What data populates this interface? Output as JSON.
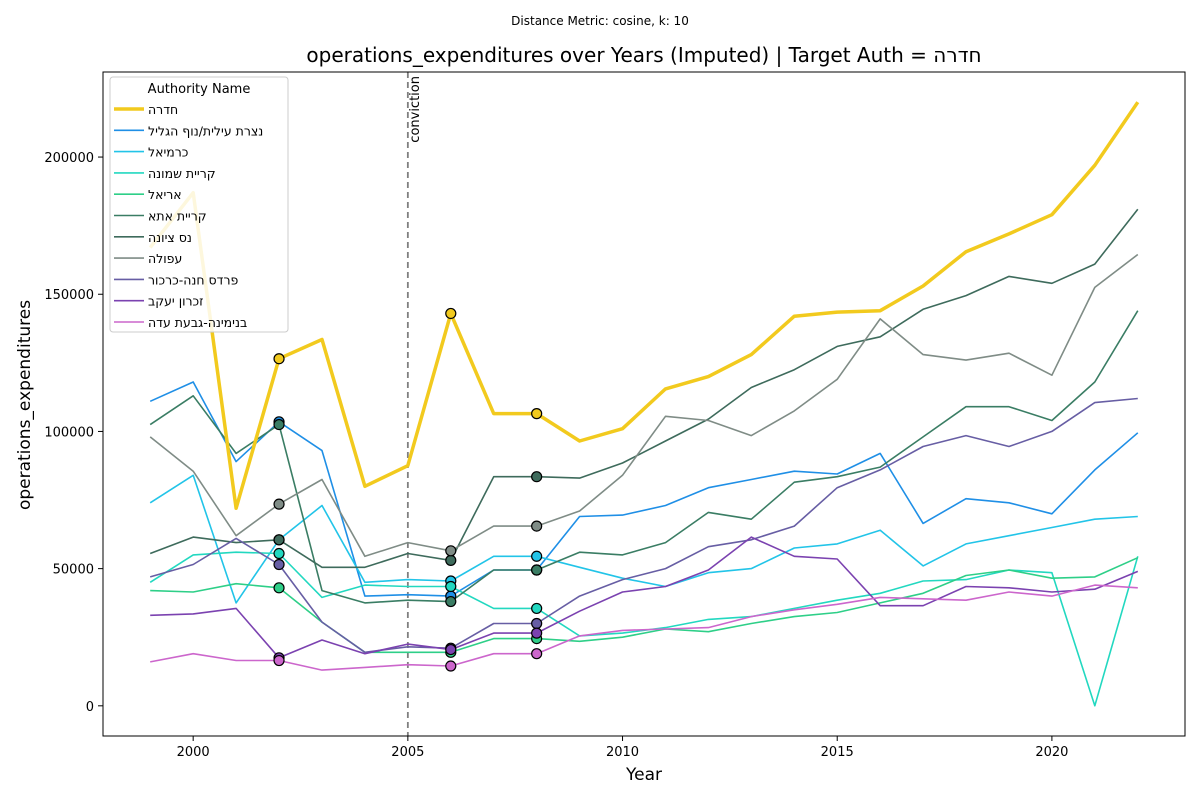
{
  "suptitle": "Distance Metric: cosine, k: 10",
  "chart_data": {
    "type": "line",
    "title": "operations_expenditures over Years (Imputed) | Target Auth = חדרה",
    "xlabel": "Year",
    "ylabel": "operations_expenditures",
    "xlim": [
      1997.9,
      2023.1
    ],
    "ylim": [
      -11000,
      231000
    ],
    "xticks": [
      2000,
      2005,
      2010,
      2015,
      2020
    ],
    "yticks": [
      0,
      50000,
      100000,
      150000,
      200000
    ],
    "grid": false,
    "legend": {
      "title": "Authority Name",
      "placement": "top-left"
    },
    "x": [
      1999,
      2000,
      2001,
      2002,
      2003,
      2004,
      2005,
      2006,
      2007,
      2008,
      2009,
      2010,
      2011,
      2012,
      2013,
      2014,
      2015,
      2016,
      2017,
      2018,
      2019,
      2020,
      2021,
      2022
    ],
    "vline": {
      "x": 2005,
      "label": "conviction",
      "color": "#808080"
    },
    "imputed_years": [
      2002,
      2006,
      2008
    ],
    "series": [
      {
        "name": "חדרה",
        "color": "#f2ca1e",
        "target": true,
        "values": [
          167000,
          187000,
          72000,
          126500,
          133500,
          80000,
          87500,
          143000,
          106500,
          106500,
          96500,
          101000,
          115500,
          120000,
          128000,
          142000,
          143500,
          144000,
          153000,
          165500,
          172000,
          179000,
          197000,
          220000
        ]
      },
      {
        "name": "נצרת עילית/נוף הגליל",
        "color": "#1f8fe6",
        "values": [
          111000,
          118000,
          89000,
          103500,
          93000,
          40000,
          40500,
          40000,
          49500,
          49500,
          69000,
          69500,
          73000,
          79500,
          82500,
          85500,
          84500,
          92000,
          66500,
          75500,
          74000,
          70000,
          86000,
          99500
        ]
      },
      {
        "name": "כרמיאל",
        "color": "#22c4e8",
        "values": [
          74000,
          84000,
          37500,
          60500,
          73000,
          45000,
          46000,
          45500,
          54500,
          54500,
          50500,
          46500,
          43500,
          48500,
          50000,
          57500,
          59000,
          64000,
          51000,
          59000,
          62000,
          65000,
          68000,
          69000
        ]
      },
      {
        "name": "קריית שמונה",
        "color": "#22d8c0",
        "values": [
          45000,
          55000,
          56000,
          55500,
          39500,
          44000,
          43500,
          43500,
          35500,
          35500,
          25500,
          26500,
          28500,
          31500,
          32500,
          35500,
          38500,
          41000,
          45500,
          46000,
          49500,
          48500,
          0,
          54500
        ]
      },
      {
        "name": "אריאל",
        "color": "#2ecf88",
        "values": [
          42000,
          41500,
          44500,
          43000,
          30500,
          19500,
          19500,
          19500,
          24500,
          24500,
          23500,
          25000,
          28000,
          27000,
          30000,
          32500,
          34000,
          37500,
          41000,
          47500,
          49500,
          46500,
          47000,
          54000
        ]
      },
      {
        "name": "קריית אתא",
        "color": "#3a7d64",
        "values": [
          102500,
          113000,
          92000,
          102500,
          42000,
          37500,
          38500,
          38000,
          49500,
          49500,
          56000,
          55000,
          59500,
          70500,
          68000,
          81500,
          83500,
          87000,
          98000,
          109000,
          109000,
          104000,
          118000,
          144000
        ]
      },
      {
        "name": "נס ציונה",
        "color": "#3e6b5c",
        "values": [
          55500,
          61500,
          59500,
          60500,
          50500,
          50500,
          55500,
          53000,
          83500,
          83500,
          83000,
          88500,
          96500,
          104500,
          116000,
          122500,
          131000,
          134500,
          144500,
          149500,
          156500,
          154000,
          161000,
          181000
        ]
      },
      {
        "name": "עפולה",
        "color": "#7f8c86",
        "values": [
          98000,
          85500,
          62000,
          73500,
          82500,
          54500,
          59500,
          56500,
          65500,
          65500,
          71000,
          84000,
          105500,
          104000,
          98500,
          107500,
          119000,
          141000,
          128000,
          126000,
          128500,
          120500,
          152500,
          164500
        ]
      },
      {
        "name": "פרדס חנה-כרכור",
        "color": "#675ea4",
        "values": [
          47000,
          51500,
          61000,
          51500,
          30500,
          19500,
          21500,
          21000,
          30000,
          30000,
          40000,
          46000,
          50000,
          58000,
          60500,
          65500,
          79500,
          86000,
          94500,
          98500,
          94500,
          100000,
          110500,
          112000
        ]
      },
      {
        "name": "זכרון יעקב",
        "color": "#7b42b0",
        "values": [
          33000,
          33500,
          35500,
          17500,
          24000,
          19000,
          22500,
          20500,
          26500,
          26500,
          34500,
          41500,
          43500,
          49500,
          61500,
          54500,
          53500,
          36500,
          36500,
          43500,
          43000,
          41500,
          42500,
          49000
        ]
      },
      {
        "name": "בנימינה-גבעת עדה",
        "color": "#cc66cc",
        "values": [
          16000,
          19000,
          16500,
          16500,
          13000,
          14000,
          15000,
          14500,
          19000,
          19000,
          25500,
          27500,
          28000,
          28500,
          32500,
          35000,
          37000,
          39500,
          39000,
          38500,
          41500,
          40000,
          44000,
          43000
        ]
      }
    ]
  }
}
